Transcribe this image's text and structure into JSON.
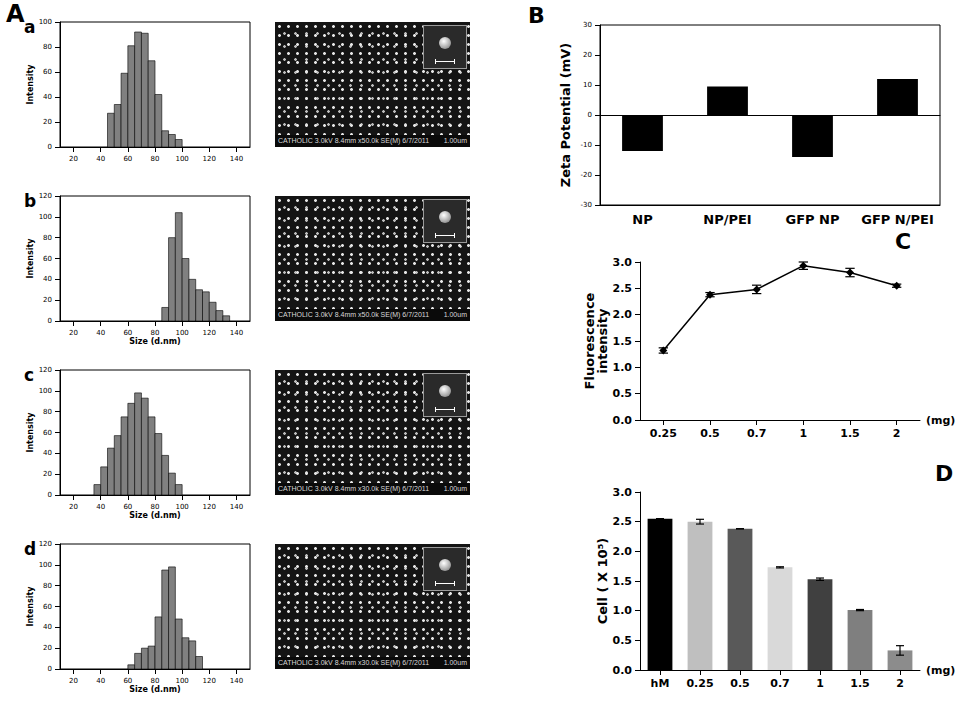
{
  "group_label": "A",
  "images": [
    {
      "caption": "CATHOLIC 3.0kV 8.4mm x50.0k SE(M) 6/7/2011",
      "scale": "1.00um"
    },
    {
      "caption": "CATHOLIC 3.0kV 8.4mm x50.0k SE(M) 6/7/2011",
      "scale": "1.00um"
    },
    {
      "caption": "CATHOLIC 3.0kV 8.4mm x30.0k SE(M) 6/7/2011",
      "scale": "1.00um"
    },
    {
      "caption": "CATHOLIC 3.0kV 8.4mm x30.0k SE(M) 6/7/2011",
      "scale": "1.00um"
    }
  ],
  "chart_data": [
    {
      "type": "histogram",
      "title": "a",
      "ylabel": "Intensity",
      "bins": [
        45,
        50,
        55,
        60,
        65,
        70,
        75,
        80,
        85,
        90,
        95,
        100
      ],
      "counts": [
        27,
        34,
        59,
        81,
        92,
        91,
        69,
        42,
        13,
        10,
        6
      ],
      "color": "#808080",
      "xlim": [
        10,
        150
      ],
      "xticks": [
        20,
        40,
        60,
        80,
        100,
        120,
        140
      ],
      "ylim": [
        0,
        100
      ],
      "yticks": [
        0,
        20,
        40,
        60,
        80,
        100
      ],
      "grid": false
    },
    {
      "type": "histogram",
      "title": "b",
      "xlabel": "Size (d.nm)",
      "ylabel": "Intensity",
      "bins": [
        85,
        90,
        95,
        100,
        105,
        110,
        115,
        120,
        125,
        130,
        135
      ],
      "counts": [
        13,
        80,
        104,
        60,
        40,
        30,
        28,
        18,
        10,
        5
      ],
      "color": "#808080",
      "xlim": [
        10,
        150
      ],
      "xticks": [
        20,
        40,
        60,
        80,
        100,
        120,
        140
      ],
      "ylim": [
        0,
        120
      ],
      "yticks": [
        0,
        20,
        40,
        60,
        80,
        100,
        120
      ],
      "grid": false
    },
    {
      "type": "histogram",
      "title": "c",
      "xlabel": "Size (d.nm)",
      "ylabel": "Intensity",
      "bins": [
        35,
        40,
        45,
        50,
        55,
        60,
        65,
        70,
        75,
        80,
        85,
        90,
        95,
        100
      ],
      "counts": [
        10,
        27,
        45,
        57,
        75,
        88,
        98,
        93,
        75,
        59,
        38,
        21,
        10
      ],
      "color": "#808080",
      "xlim": [
        10,
        150
      ],
      "xticks": [
        20,
        40,
        60,
        80,
        100,
        120,
        140
      ],
      "ylim": [
        0,
        120
      ],
      "yticks": [
        0,
        20,
        40,
        60,
        80,
        100,
        120
      ],
      "grid": false
    },
    {
      "type": "histogram",
      "title": "d",
      "xlabel": "Size (d.nm)",
      "ylabel": "Intensity",
      "bins": [
        60,
        65,
        70,
        75,
        80,
        85,
        90,
        95,
        100,
        105,
        110,
        115
      ],
      "counts": [
        4,
        15,
        20,
        22,
        50,
        95,
        98,
        48,
        30,
        27,
        12
      ],
      "color": "#808080",
      "xlim": [
        10,
        150
      ],
      "xticks": [
        20,
        40,
        60,
        80,
        100,
        120,
        140
      ],
      "ylim": [
        0,
        120
      ],
      "yticks": [
        0,
        20,
        40,
        60,
        80,
        100,
        120
      ],
      "grid": false
    },
    {
      "type": "bar",
      "title": "B",
      "ylabel": "Zeta Potential (mV)",
      "categories": [
        "NP",
        "NP/PEI",
        "GFP NP",
        "GFP N/PEI"
      ],
      "values": [
        -12,
        9.5,
        -14,
        12
      ],
      "color": "#000000",
      "ylim": [
        -30,
        30
      ],
      "yticks": [
        -30,
        -20,
        -10,
        0,
        10,
        20,
        30
      ],
      "grid": false
    },
    {
      "type": "line",
      "title": "C",
      "xlabel": "(mg)",
      "ylabel": "Fluorescence\nintensity",
      "categories": [
        "0.25",
        "0.5",
        "0.7",
        "1",
        "1.5",
        "2"
      ],
      "values": [
        1.32,
        2.38,
        2.48,
        2.93,
        2.8,
        2.55
      ],
      "errors": [
        0.05,
        0.04,
        0.08,
        0.07,
        0.08,
        0.03
      ],
      "color": "#000000",
      "marker": "diamond",
      "line_style": "solid",
      "ylim": [
        0,
        3
      ],
      "yticks": [
        {
          "value": 0,
          "label": "0.0"
        },
        0.5,
        {
          "value": 1,
          "label": "1.0"
        },
        1.5,
        {
          "value": 2,
          "label": "2.0"
        },
        2.5,
        {
          "value": 3,
          "label": "3.0"
        }
      ],
      "grid": false
    },
    {
      "type": "bar",
      "title": "D",
      "xlabel": "(mg)",
      "ylabel": "Cell ( X 10⁵)",
      "categories": [
        "hM",
        "0.25",
        "0.5",
        "0.7",
        "1",
        "1.5",
        "2"
      ],
      "values": [
        2.55,
        2.5,
        2.38,
        1.73,
        1.53,
        1.01,
        0.33
      ],
      "errors": [
        0,
        0.04,
        0,
        0.01,
        0.02,
        0.01,
        0.08
      ],
      "colors": [
        "#000000",
        "#bfbfbf",
        "#595959",
        "#d9d9d9",
        "#404040",
        "#7f7f7f",
        "#8c8c8c"
      ],
      "ylim": [
        0,
        3
      ],
      "yticks": [
        {
          "value": 0,
          "label": "0.0"
        },
        0.5,
        {
          "value": 1,
          "label": "1.0"
        },
        1.5,
        {
          "value": 2,
          "label": "2.0"
        },
        2.5,
        {
          "value": 3,
          "label": "3.0"
        }
      ],
      "grid": false
    }
  ]
}
